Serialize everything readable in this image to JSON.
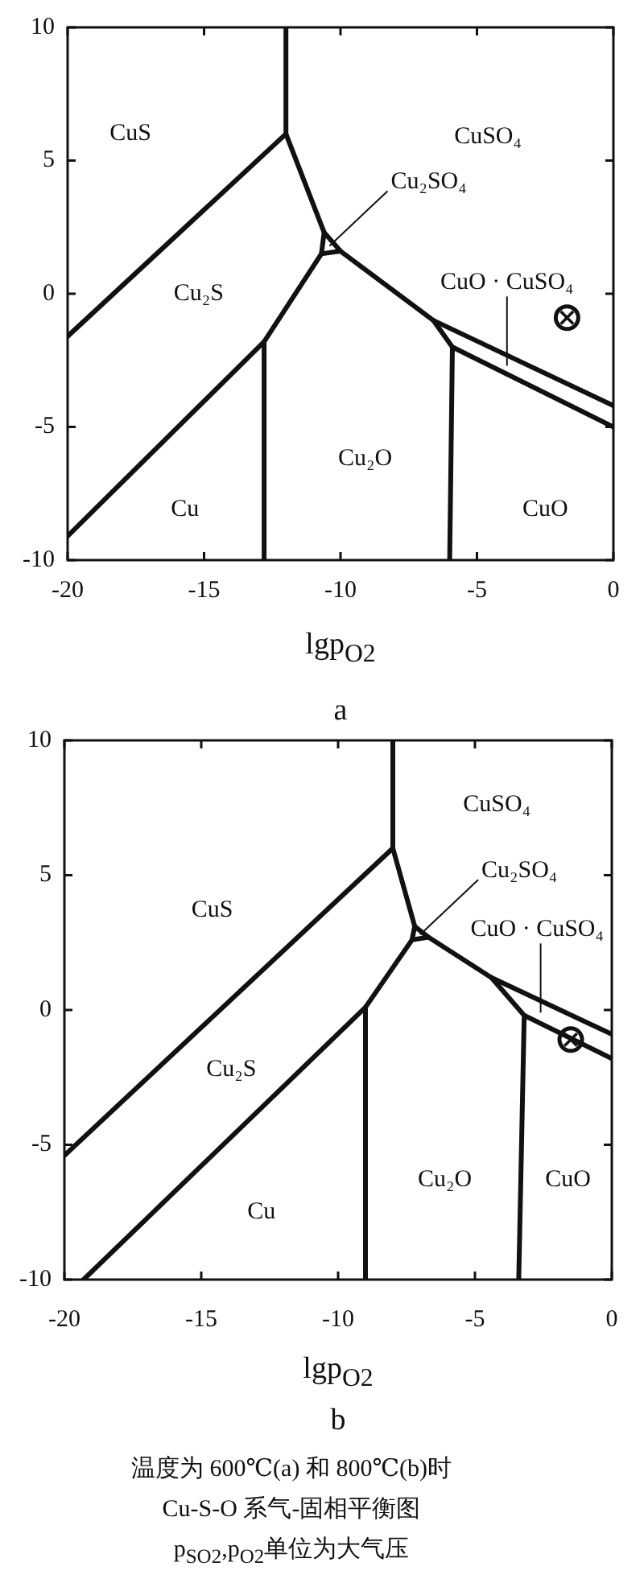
{
  "chart_data": [
    {
      "type": "line",
      "subtitle": "a",
      "xlabel": "lgp$_{O2}$",
      "xlim": [
        -20,
        0
      ],
      "xticks": [
        -20,
        -15,
        -10,
        -5,
        0
      ],
      "ylim": [
        -10,
        10
      ],
      "yticks": [
        -10,
        -5,
        0,
        5,
        10
      ],
      "series": [
        {
          "color": "#111111",
          "x": [
            -12,
            -12,
            -20
          ],
          "values": [
            10,
            6,
            -1.6
          ]
        },
        {
          "color": "#111111",
          "x": [
            -12,
            -10.6,
            -10.0,
            -6.6,
            0
          ],
          "values": [
            6,
            2.3,
            1.6,
            -1.0,
            -4.2
          ]
        },
        {
          "color": "#111111",
          "x": [
            -20,
            -12.8,
            -10.7,
            -10.6
          ],
          "values": [
            -9.1,
            -1.8,
            1.5,
            2.3
          ]
        },
        {
          "color": "#111111",
          "x": [
            -10.7,
            -10.0
          ],
          "values": [
            1.5,
            1.6
          ]
        },
        {
          "color": "#111111",
          "x": [
            -12.8,
            -12.8
          ],
          "values": [
            -10,
            -1.8
          ]
        },
        {
          "color": "#111111",
          "x": [
            -6.6,
            -5.9,
            0
          ],
          "values": [
            -1.0,
            -2.0,
            -5.0
          ]
        },
        {
          "color": "#111111",
          "x": [
            -6.0,
            -5.9
          ],
          "values": [
            -10,
            -2.0
          ]
        },
        {
          "type": "scatter",
          "marker": "circle",
          "color": "#111111",
          "x": [
            -1.7
          ],
          "values": [
            -0.9
          ]
        }
      ],
      "annotations": [
        "CuS",
        "CuSO₄",
        "Cu₂S",
        "Cu₂O",
        "Cu",
        "CuO",
        {
          "text": "Cu₂SO₄",
          "x": -10.4,
          "y": 1.8
        },
        {
          "text": "CuO · CuSO₄",
          "x": -3.9,
          "y": -2.7
        }
      ]
    },
    {
      "type": "line",
      "subtitle": "b",
      "xlabel": "lgp$_{O2}$",
      "xlim": [
        -20,
        0
      ],
      "xticks": [
        -20,
        -15,
        -10,
        -5,
        0
      ],
      "ylim": [
        -10,
        10
      ],
      "yticks": [
        -10,
        -5,
        0,
        5,
        10
      ],
      "series": [
        {
          "color": "#111111",
          "x": [
            -8,
            -8,
            -20
          ],
          "values": [
            10,
            6,
            -5.4
          ]
        },
        {
          "color": "#111111",
          "x": [
            -8,
            -7.2,
            -6.7,
            -4.4,
            0
          ],
          "values": [
            6,
            3.1,
            2.7,
            1.2,
            -0.9
          ]
        },
        {
          "color": "#111111",
          "x": [
            -19.3,
            -9.0,
            -7.3,
            -7.2
          ],
          "values": [
            -10,
            0.1,
            2.6,
            3.1
          ]
        },
        {
          "color": "#111111",
          "x": [
            -7.3,
            -6.7
          ],
          "values": [
            2.6,
            2.7
          ]
        },
        {
          "color": "#111111",
          "x": [
            -9,
            -9
          ],
          "values": [
            -10,
            0.1
          ]
        },
        {
          "color": "#111111",
          "x": [
            -4.4,
            -3.2,
            0
          ],
          "values": [
            1.2,
            -0.2,
            -1.8
          ]
        },
        {
          "color": "#111111",
          "x": [
            -3.4,
            -3.2
          ],
          "values": [
            -10,
            -0.2
          ]
        },
        {
          "type": "scatter",
          "marker": "circle",
          "color": "#111111",
          "x": [
            -1.5
          ],
          "values": [
            -1.1
          ]
        }
      ],
      "annotations": [
        "CuSO₄",
        "CuS",
        "Cu₂S",
        "Cu₂O",
        "CuO",
        "Cu",
        {
          "text": "Cu₂SO₄",
          "x": -7.0,
          "y": 2.8
        },
        {
          "text": "CuO · CuSO₄",
          "x": -2.6,
          "y": -0.1
        },
        "温度为 600℃(a) 和 800℃(b)时",
        "Cu-S-O 系气-固相平衡图",
        "p$_{SO2}$,p$_{O2}$单位为大气压"
      ]
    }
  ]
}
